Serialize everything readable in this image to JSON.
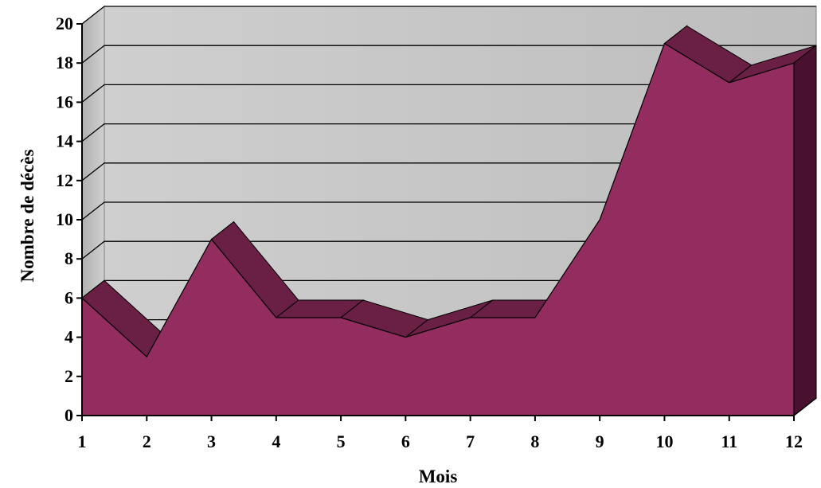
{
  "chart_data": {
    "type": "area",
    "title": "",
    "xlabel": "Mois",
    "ylabel": "Nombre de décès",
    "x": [
      1,
      2,
      3,
      4,
      5,
      6,
      7,
      8,
      9,
      10,
      11,
      12
    ],
    "series": [
      {
        "values": [
          6,
          3,
          9,
          5,
          5,
          4,
          5,
          5,
          10,
          19,
          17,
          18
        ]
      }
    ],
    "ylim": [
      0,
      20
    ],
    "yticks": [
      0,
      2,
      4,
      6,
      8,
      10,
      12,
      14,
      16,
      18,
      20
    ],
    "xticks": [
      "1",
      "2",
      "3",
      "4",
      "5",
      "6",
      "7",
      "8",
      "9",
      "10",
      "11",
      "12"
    ],
    "grid": true,
    "legend": "none",
    "style": "3d",
    "colors": {
      "fill": "#942d5f",
      "top": "#6a1f45",
      "side": "#4a1030",
      "wall": "#c4c4c4",
      "floor": "#a8a8a8",
      "gridline": "#000000"
    }
  }
}
